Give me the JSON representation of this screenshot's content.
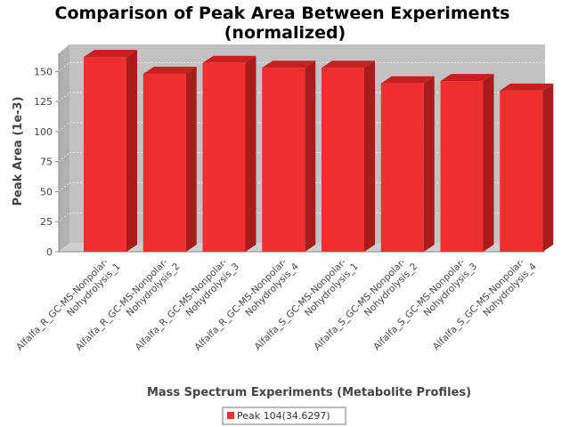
{
  "chart_data": {
    "type": "bar",
    "title_line1": "Comparison of Peak Area Between Experiments",
    "title_line2": "(normalized)",
    "xlabel": "Mass Spectrum Experiments (Metabolite Profiles)",
    "ylabel": "Peak Area (1e-3)",
    "ylim": [
      0,
      165
    ],
    "yticks": [
      "0",
      "25",
      "50",
      "75",
      "100",
      "125",
      "150"
    ],
    "grid": true,
    "legend_position": "bottom",
    "categories": [
      [
        "Alfalfa_R_GC-MS-Nonpolar-",
        "Nohydrolysis_1"
      ],
      [
        "Alfalfa_R_GC-MS-Nonpolar-",
        "Nohydrolysis_2"
      ],
      [
        "Alfalfa_R_GC-MS-Nonpolar-",
        "Nohydrolysis_3"
      ],
      [
        "Alfalfa_R_GC-MS-Nonpolar-",
        "Nohydrolysis_4"
      ],
      [
        "Alfalfa_S_GC-MS-Nonpolar-",
        "Nohydrolysis_1"
      ],
      [
        "Alfalfa_S_GC-MS-Nonpolar-",
        "Nohydrolysis_2"
      ],
      [
        "Alfalfa_S_GC-MS-Nonpolar-",
        "Nohydrolysis_3"
      ],
      [
        "Alfalfa_S_GC-MS-Nonpolar-",
        "Nohydrolysis_4"
      ]
    ],
    "series": [
      {
        "name": "Peak 104(34.6297)",
        "color": "#ee2f2f",
        "values": [
          162,
          148,
          157,
          153,
          153,
          140,
          142,
          134
        ]
      }
    ]
  }
}
